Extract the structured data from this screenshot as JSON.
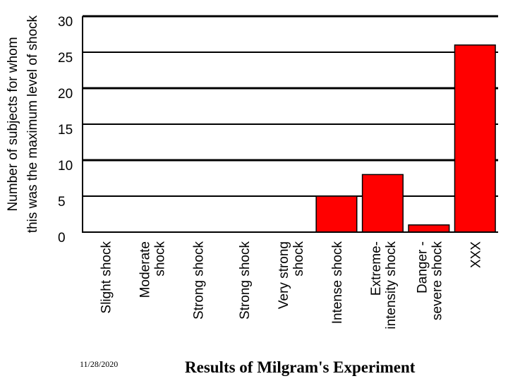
{
  "slide": {
    "title": "Results of Milgram's Experiment",
    "date": "11/28/2020"
  },
  "chart_data": {
    "type": "bar",
    "title": "",
    "xlabel": "",
    "ylabel_lines": [
      "Number of subjects for whom",
      "this was the maximum level of shock"
    ],
    "categories": [
      [
        "Slight shock"
      ],
      [
        "Moderate",
        "shock"
      ],
      [
        "Strong shock"
      ],
      [
        "Strong shock"
      ],
      [
        "Very strong",
        "shock"
      ],
      [
        "Intense shock"
      ],
      [
        "Extreme-",
        "intensity shock"
      ],
      [
        "Danger -",
        "severe shock"
      ],
      [
        "XXX"
      ]
    ],
    "values": [
      0,
      0,
      0,
      0,
      0,
      5,
      8,
      1,
      26
    ],
    "ylim": [
      0,
      30
    ],
    "yticks": [
      0,
      5,
      10,
      15,
      20,
      25,
      30
    ],
    "grid": true,
    "bar_color": "#ff0000",
    "legend": "none"
  }
}
